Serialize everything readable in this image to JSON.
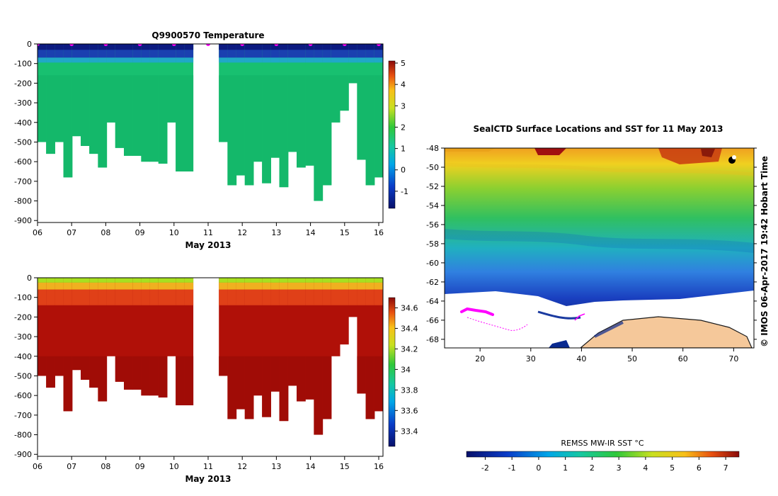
{
  "chart_data": [
    {
      "type": "heatmap",
      "title": "Q9900570  Temperature",
      "xlabel": "May 2013",
      "x_ticks": [
        "06",
        "07",
        "08",
        "09",
        "10",
        "11",
        "12",
        "13",
        "14",
        "15",
        "16"
      ],
      "y_ticks": [
        "0",
        "-100",
        "-200",
        "-300",
        "-400",
        "-500",
        "-600",
        "-700",
        "-800",
        "-900"
      ],
      "ylim": [
        -910,
        0
      ],
      "colorbar": {
        "min": -1.8,
        "max": 5.1,
        "ticks": [
          "5",
          "4",
          "3",
          "2",
          "1",
          "0",
          "-1"
        ]
      },
      "profiles_max_depth": [
        500,
        560,
        500,
        680,
        470,
        520,
        560,
        630,
        400,
        530,
        570,
        570,
        600,
        600,
        610,
        400,
        650,
        650,
        null,
        null,
        null,
        500,
        720,
        670,
        720,
        600,
        710,
        580,
        730,
        550,
        630,
        620,
        800,
        720,
        400,
        340,
        200,
        590,
        720,
        680
      ],
      "surface_temp": -1.2,
      "mixed_layer_temp": 1.3
    },
    {
      "type": "heatmap",
      "title": "",
      "xlabel": "May 2013",
      "x_ticks": [
        "06",
        "07",
        "08",
        "09",
        "10",
        "11",
        "12",
        "13",
        "14",
        "15",
        "16"
      ],
      "y_ticks": [
        "0",
        "-100",
        "-200",
        "-300",
        "-400",
        "-500",
        "-600",
        "-700",
        "-800",
        "-900"
      ],
      "ylim": [
        -910,
        0
      ],
      "colorbar": {
        "min": 33.25,
        "max": 34.7,
        "ticks": [
          "34.6",
          "34.4",
          "34.2",
          "34",
          "33.8",
          "33.6",
          "33.4"
        ]
      },
      "surface_salinity": 34.0,
      "deep_salinity": 34.68
    },
    {
      "type": "heatmap",
      "title": "SealCTD Surface Locations and SST for 11 May 2013",
      "x_ticks": [
        "20",
        "30",
        "40",
        "50",
        "60",
        "70"
      ],
      "xlim": [
        13,
        74
      ],
      "y_ticks": [
        "-48",
        "-50",
        "-52",
        "-54",
        "-56",
        "-58",
        "-60",
        "-62",
        "-64",
        "-66",
        "-68"
      ],
      "ylim": [
        -68.9,
        -48
      ],
      "colorbar": {
        "label": "REMSS MW-IR SST °C",
        "min": -2.7,
        "max": 7.5,
        "ticks": [
          "-2",
          "-1",
          "0",
          "1",
          "2",
          "3",
          "4",
          "5",
          "6",
          "7"
        ]
      },
      "credit": "© IMOS 06-Apr-2017 19:42 Hobart Time"
    }
  ],
  "colors": {
    "track": "#ff00ff",
    "land": "#f5c89a",
    "ice": "#ffffff"
  }
}
